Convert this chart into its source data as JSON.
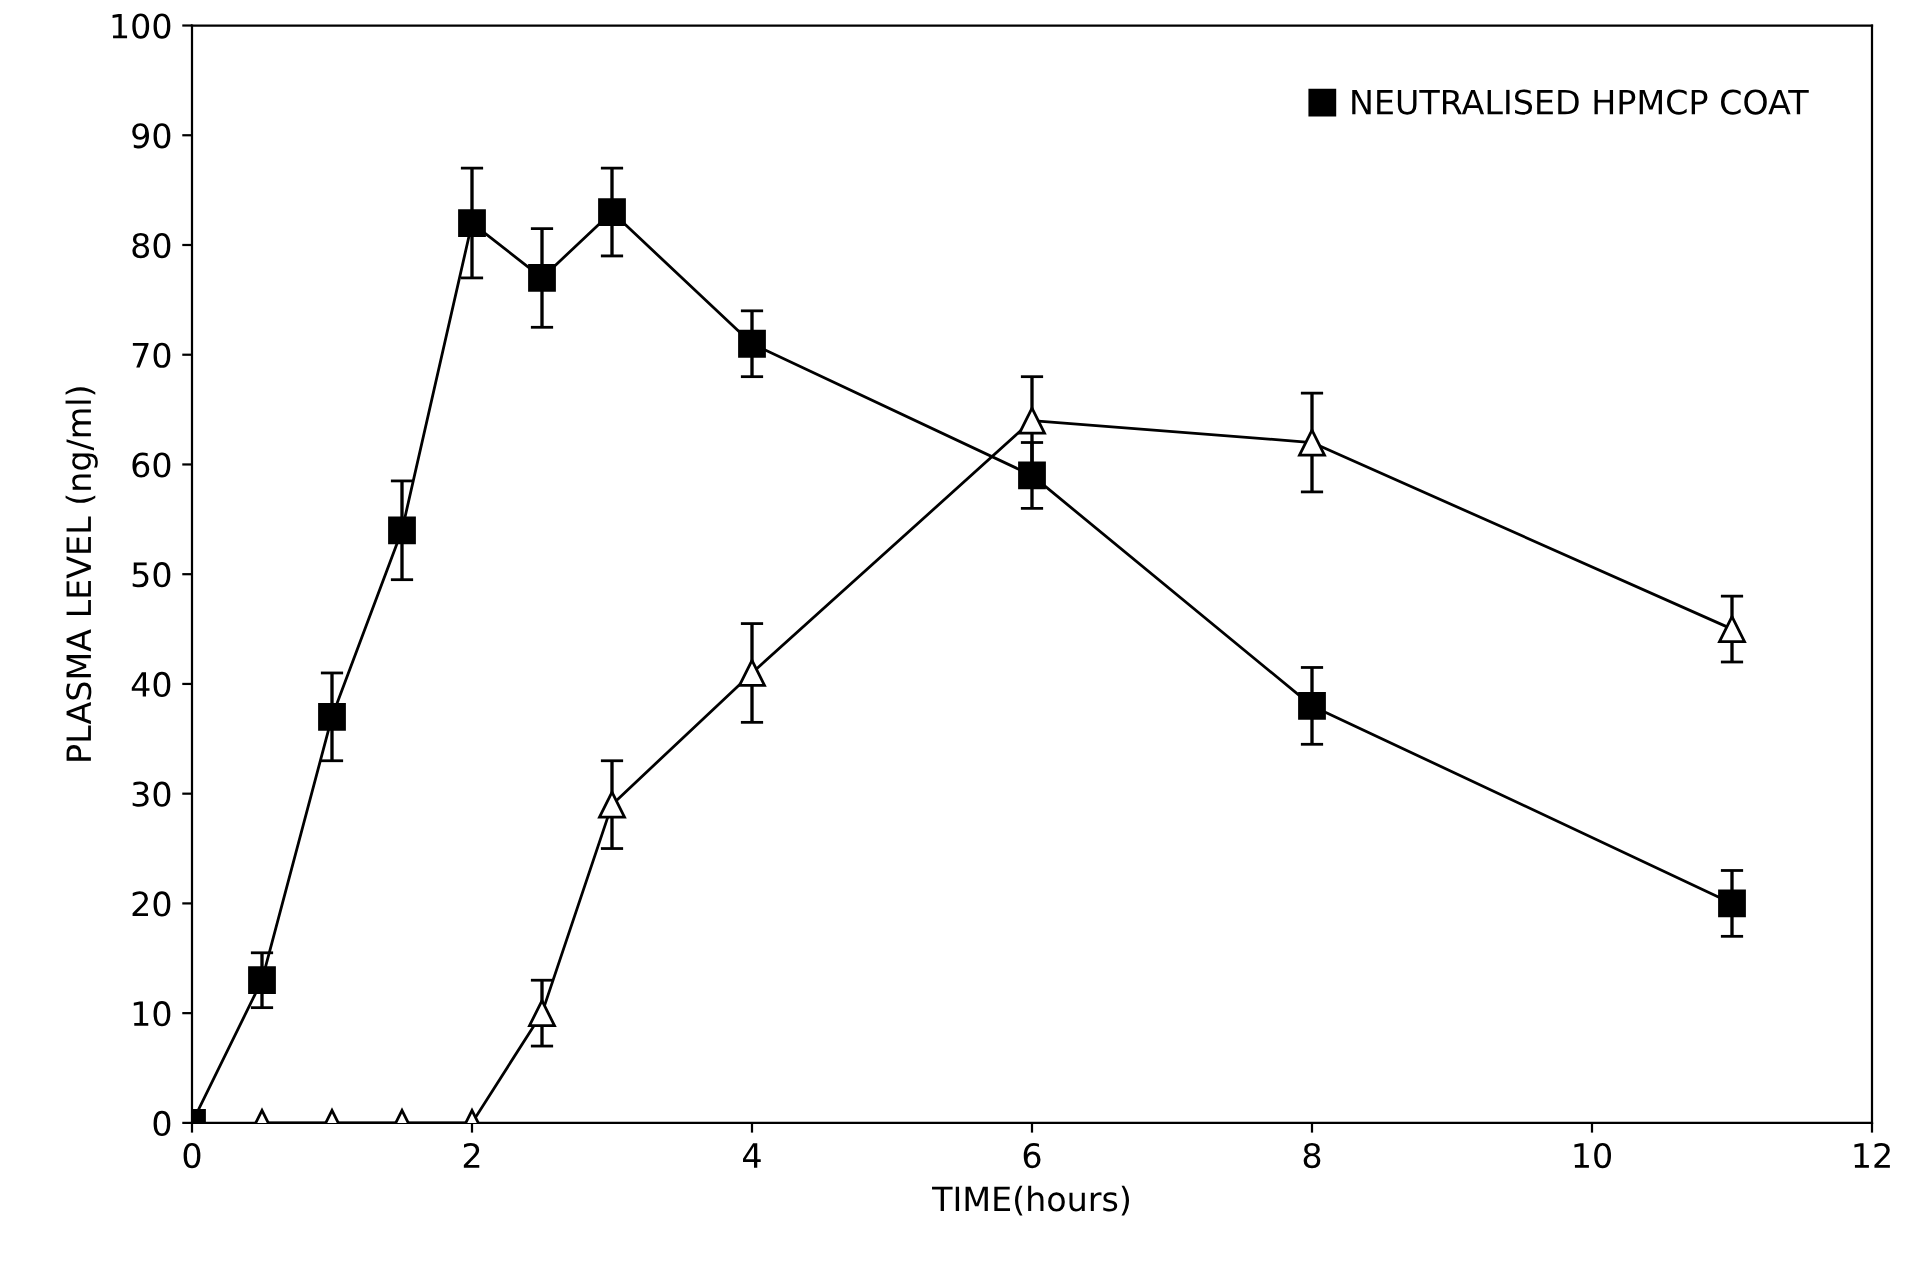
{
  "chart_data": {
    "type": "line",
    "xlabel": "TIME(hours)",
    "ylabel": "PLASMA LEVEL (ng/ml)",
    "xlim": [
      0,
      12
    ],
    "ylim": [
      0,
      100
    ],
    "xticks": [
      0,
      2,
      4,
      6,
      8,
      10,
      12
    ],
    "yticks": [
      0,
      10,
      20,
      30,
      40,
      50,
      60,
      70,
      80,
      90,
      100
    ],
    "grid": false,
    "legend": "top right",
    "line_style": "solid",
    "series": [
      {
        "name": "NEUTRALISED HPMCP COAT",
        "color": "#000000",
        "marker": "square",
        "x": [
          0,
          0.5,
          1,
          1.5,
          2,
          2.5,
          3,
          4,
          6,
          8,
          11
        ],
        "values": [
          0,
          13,
          37,
          54,
          82,
          77,
          83,
          71,
          59,
          38,
          20
        ],
        "errors": [
          null,
          2.5,
          4,
          4.5,
          5,
          4.5,
          4,
          3,
          3,
          3.5,
          3
        ]
      },
      {
        "color": "#000000",
        "marker": "triangle",
        "x": [
          0.5,
          1,
          1.5,
          2,
          2.5,
          3,
          4,
          6,
          8,
          11
        ],
        "values": [
          0,
          0,
          0,
          0,
          10,
          29,
          41,
          64,
          62,
          45
        ],
        "errors": [
          null,
          null,
          null,
          null,
          3,
          4,
          4.5,
          4,
          4.5,
          3
        ]
      }
    ]
  }
}
